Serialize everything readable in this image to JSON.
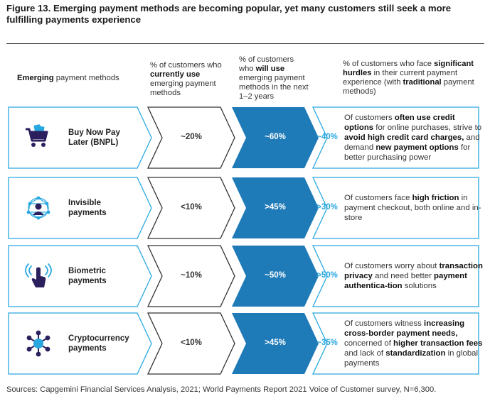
{
  "title": "Figure 13. Emerging payment methods are becoming popular, yet many customers still seek a more fulfilling payments experience",
  "headers": {
    "methods_bold": "Emerging",
    "methods_rest": " payment methods",
    "current_a": "% of customers who ",
    "current_b": "currently use",
    "current_c": " emerging payment methods",
    "willuse_a": "% of customers who ",
    "willuse_b": "will use",
    "willuse_c": " emerging payment methods in the next 1–2 years",
    "hurdle_a": "% of customers who face ",
    "hurdle_b": "significant hurdles",
    "hurdle_c": " in their current payment experience (with ",
    "hurdle_d": "traditional",
    "hurdle_e": " payment methods)"
  },
  "rows": [
    {
      "icon": "shopping-cart-icon",
      "name": "Buy Now Pay Later (BNPL)",
      "current": "~20%",
      "will_use": "~60%",
      "hurdle_pct": "~40%",
      "desc": [
        {
          "t": "Of customers ",
          "b": false
        },
        {
          "t": "often use credit options",
          "b": true
        },
        {
          "t": " for online purchases, strive to ",
          "b": false
        },
        {
          "t": "avoid high credit card charges,",
          "b": true
        },
        {
          "t": " and demand ",
          "b": false
        },
        {
          "t": "new payment options",
          "b": true
        },
        {
          "t": " for better purchasing power",
          "b": false
        }
      ]
    },
    {
      "icon": "network-person-icon",
      "name": "Invisible payments",
      "current": "<10%",
      "will_use": ">45%",
      "hurdle_pct": ">30%",
      "desc": [
        {
          "t": "Of customers face ",
          "b": false
        },
        {
          "t": "high friction",
          "b": true
        },
        {
          "t": " in payment checkout, both online and in-store",
          "b": false
        }
      ]
    },
    {
      "icon": "contactless-touch-icon",
      "name": "Biometric payments",
      "current": "~10%",
      "will_use": "~50%",
      "hurdle_pct": ">50%",
      "desc": [
        {
          "t": "Of customers worry about ",
          "b": false
        },
        {
          "t": "transaction privacy",
          "b": true
        },
        {
          "t": " and need better ",
          "b": false
        },
        {
          "t": "payment authentica-tion",
          "b": true
        },
        {
          "t": " solutions",
          "b": false
        }
      ]
    },
    {
      "icon": "crypto-network-icon",
      "name": "Cryptocurrency payments",
      "current": "<10%",
      "will_use": ">45%",
      "hurdle_pct": "~35%",
      "desc": [
        {
          "t": "Of customers witness ",
          "b": false
        },
        {
          "t": "increasing cross-border payment needs,",
          "b": true
        },
        {
          "t": " concerned of ",
          "b": false
        },
        {
          "t": "higher transaction fees",
          "b": true
        },
        {
          "t": " and lack of ",
          "b": false
        },
        {
          "t": "standardization",
          "b": true
        },
        {
          "t": " in global payments",
          "b": false
        }
      ]
    }
  ],
  "source": "Sources: Capgemini Financial Services Analysis, 2021; World Payments Report 2021 Voice of Customer survey, N=6,300.",
  "colors": {
    "accent_blue": "#1f7ab8",
    "light_blue": "#29a8e0",
    "icon_purple": "#2b1f5e",
    "icon_blue": "#29a8e0"
  }
}
